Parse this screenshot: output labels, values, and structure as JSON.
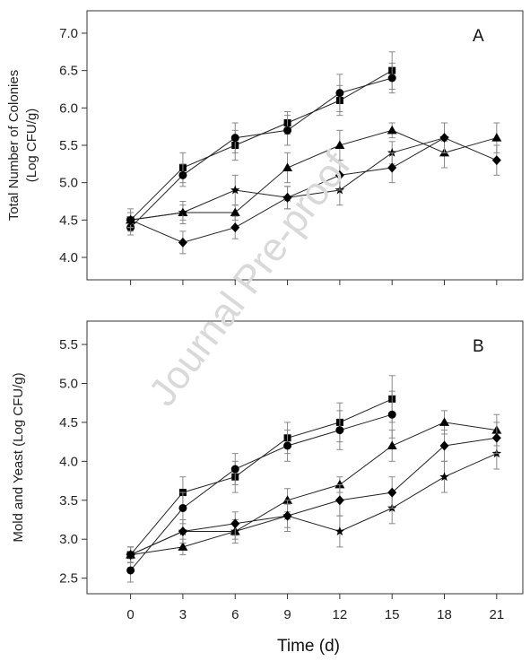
{
  "watermark": "Journal Pre-proof",
  "x_axis": {
    "title": "Time (d)",
    "ticks": [
      0,
      3,
      6,
      9,
      12,
      15,
      18,
      21
    ],
    "tick_labels": [
      "0",
      "3",
      "6",
      "9",
      "12",
      "15",
      "18",
      "21"
    ],
    "xlim": [
      -2.5,
      22.5
    ]
  },
  "chart_data": [
    {
      "type": "line",
      "panel_label": "A",
      "ylabel": [
        "Total Number of Colonies",
        "(Log CFU/g)"
      ],
      "ylim": [
        3.7,
        7.3
      ],
      "yticks": [
        4.0,
        4.5,
        5.0,
        5.5,
        6.0,
        6.5,
        7.0
      ],
      "ytick_labels": [
        "4.0",
        "4.5",
        "5.0",
        "5.5",
        "6.0",
        "6.5",
        "7.0"
      ],
      "grid": false,
      "series": [
        {
          "marker": "square",
          "x": [
            0,
            3,
            6,
            9,
            12,
            15
          ],
          "y": [
            4.5,
            5.2,
            5.5,
            5.8,
            6.1,
            6.5
          ],
          "err": [
            0.1,
            0.2,
            0.2,
            0.15,
            0.2,
            0.25
          ]
        },
        {
          "marker": "circle",
          "x": [
            0,
            3,
            6,
            9,
            12,
            15
          ],
          "y": [
            4.4,
            5.1,
            5.6,
            5.7,
            6.2,
            6.4
          ],
          "err": [
            0.1,
            0.15,
            0.2,
            0.2,
            0.25,
            0.2
          ]
        },
        {
          "marker": "triangle",
          "x": [
            0,
            3,
            6,
            9,
            12,
            15,
            18,
            21
          ],
          "y": [
            4.5,
            4.6,
            4.6,
            5.2,
            5.5,
            5.7,
            5.4,
            5.6
          ],
          "err": [
            0.1,
            0.15,
            0.1,
            0.2,
            0.2,
            0.1,
            0.2,
            0.2
          ]
        },
        {
          "marker": "star",
          "x": [
            0,
            3,
            6,
            9,
            12,
            15,
            18
          ],
          "y": [
            4.5,
            4.6,
            4.9,
            4.8,
            4.9,
            5.4,
            5.6
          ],
          "err": [
            0.15,
            0.1,
            0.2,
            0.15,
            0.2,
            0.15,
            0.2
          ]
        },
        {
          "marker": "diamond",
          "x": [
            0,
            3,
            6,
            9,
            12,
            15,
            18,
            21
          ],
          "y": [
            4.5,
            4.2,
            4.4,
            4.8,
            5.1,
            5.2,
            5.6,
            5.3
          ],
          "err": [
            0.1,
            0.15,
            0.15,
            0.15,
            0.2,
            0.2,
            0.2,
            0.2
          ]
        }
      ]
    },
    {
      "type": "line",
      "panel_label": "B",
      "ylabel": [
        "Mold and Yeast (Log CFU/g)"
      ],
      "ylim": [
        2.3,
        5.8
      ],
      "yticks": [
        2.5,
        3.0,
        3.5,
        4.0,
        4.5,
        5.0,
        5.5
      ],
      "ytick_labels": [
        "2.5",
        "3.0",
        "3.5",
        "4.0",
        "4.5",
        "5.0",
        "5.5"
      ],
      "grid": false,
      "series": [
        {
          "marker": "square",
          "x": [
            0,
            3,
            6,
            9,
            12,
            15
          ],
          "y": [
            2.8,
            3.6,
            3.8,
            4.3,
            4.5,
            4.8
          ],
          "err": [
            0.1,
            0.2,
            0.2,
            0.2,
            0.25,
            0.3
          ]
        },
        {
          "marker": "circle",
          "x": [
            0,
            3,
            6,
            9,
            12,
            15
          ],
          "y": [
            2.6,
            3.4,
            3.9,
            4.2,
            4.4,
            4.6
          ],
          "err": [
            0.15,
            0.2,
            0.2,
            0.2,
            0.25,
            0.3
          ]
        },
        {
          "marker": "triangle",
          "x": [
            0,
            3,
            6,
            9,
            12,
            15,
            18,
            21
          ],
          "y": [
            2.8,
            2.9,
            3.1,
            3.5,
            3.7,
            4.2,
            4.5,
            4.4
          ],
          "err": [
            0.1,
            0.1,
            0.1,
            0.15,
            0.1,
            0.2,
            0.15,
            0.2
          ]
        },
        {
          "marker": "star",
          "x": [
            0,
            3,
            6,
            9,
            12,
            15,
            18,
            21
          ],
          "y": [
            2.8,
            3.1,
            3.1,
            3.3,
            3.1,
            3.4,
            3.8,
            4.1
          ],
          "err": [
            0.1,
            0.15,
            0.15,
            0.15,
            0.2,
            0.2,
            0.2,
            0.2
          ]
        },
        {
          "marker": "diamond",
          "x": [
            0,
            3,
            6,
            9,
            12,
            15,
            18,
            21
          ],
          "y": [
            2.8,
            3.1,
            3.2,
            3.3,
            3.5,
            3.6,
            4.2,
            4.3
          ],
          "err": [
            0.1,
            0.15,
            0.15,
            0.2,
            0.2,
            0.2,
            0.2,
            0.2
          ]
        }
      ]
    }
  ]
}
